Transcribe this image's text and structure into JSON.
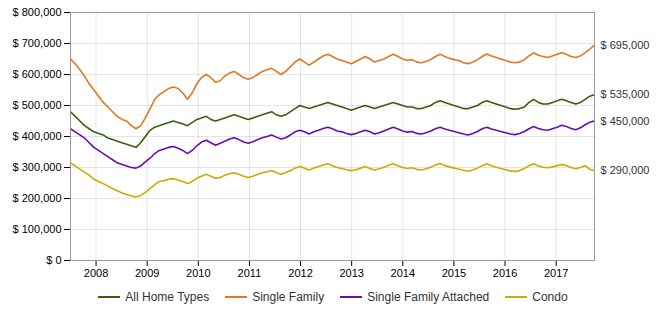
{
  "chart_data": {
    "type": "line",
    "x": [
      2007.5,
      2007.591518,
      2007.683036,
      2007.774554,
      2007.866071,
      2007.957589,
      2008.049107,
      2008.140625,
      2008.232143,
      2008.323661,
      2008.415179,
      2008.506696,
      2008.598214,
      2008.689732,
      2008.78125,
      2008.872768,
      2008.964286,
      2009.055804,
      2009.147321,
      2009.238839,
      2009.330357,
      2009.421875,
      2009.513393,
      2009.604911,
      2009.696429,
      2009.787946,
      2009.879464,
      2009.970982,
      2010.0625,
      2010.154018,
      2010.245536,
      2010.337054,
      2010.428571,
      2010.520089,
      2010.611607,
      2010.703125,
      2010.794643,
      2010.886161,
      2010.977679,
      2011.069196,
      2011.160714,
      2011.252232,
      2011.34375,
      2011.435268,
      2011.526786,
      2011.618304,
      2011.709821,
      2011.801339,
      2011.892857,
      2011.984375,
      2012.075893,
      2012.167411,
      2012.258929,
      2012.350446,
      2012.441964,
      2012.533482,
      2012.625,
      2012.716518,
      2012.808036,
      2012.899554,
      2012.991071,
      2013.082589,
      2013.174107,
      2013.265625,
      2013.357143,
      2013.448661,
      2013.540179,
      2013.631696,
      2013.723214,
      2013.814732,
      2013.90625,
      2013.997768,
      2014.089286,
      2014.180804,
      2014.272321,
      2014.363839,
      2014.455357,
      2014.546875,
      2014.638393,
      2014.729911,
      2014.821429,
      2014.912946,
      2015.004464,
      2015.095982,
      2015.1875,
      2015.279018,
      2015.370536,
      2015.462054,
      2015.553571,
      2015.645089,
      2015.736607,
      2015.828125,
      2015.919643,
      2016.011161,
      2016.102679,
      2016.194196,
      2016.285714,
      2016.377232,
      2016.46875,
      2016.560268,
      2016.651786,
      2016.743304,
      2016.834821,
      2016.926339,
      2017.017857,
      2017.109375,
      2017.200893,
      2017.292411,
      2017.383929,
      2017.475446,
      2017.566964,
      2017.658482,
      2017.75
    ],
    "series": [
      {
        "name": "All Home Types",
        "color": "#3a5f0b",
        "values": [
          480000,
          465000,
          450000,
          435000,
          425000,
          415000,
          410000,
          405000,
          395000,
          390000,
          385000,
          380000,
          375000,
          370000,
          365000,
          380000,
          400000,
          420000,
          430000,
          435000,
          440000,
          445000,
          450000,
          445000,
          440000,
          435000,
          445000,
          455000,
          460000,
          465000,
          455000,
          450000,
          455000,
          460000,
          465000,
          470000,
          465000,
          460000,
          455000,
          460000,
          465000,
          470000,
          475000,
          480000,
          470000,
          465000,
          470000,
          480000,
          490000,
          500000,
          495000,
          490000,
          495000,
          500000,
          505000,
          510000,
          505000,
          500000,
          495000,
          490000,
          485000,
          490000,
          495000,
          500000,
          495000,
          490000,
          495000,
          500000,
          505000,
          510000,
          505000,
          500000,
          495000,
          495000,
          490000,
          490000,
          495000,
          500000,
          510000,
          515000,
          510000,
          505000,
          500000,
          495000,
          490000,
          490000,
          495000,
          500000,
          510000,
          515000,
          510000,
          505000,
          500000,
          495000,
          490000,
          488000,
          490000,
          495000,
          510000,
          520000,
          510000,
          505000,
          505000,
          510000,
          515000,
          520000,
          515000,
          510000,
          505000,
          510000,
          520000,
          530000,
          535000
        ]
      },
      {
        "name": "Single Family",
        "color": "#e07820",
        "values": [
          650000,
          635000,
          615000,
          595000,
          570000,
          550000,
          530000,
          510000,
          495000,
          480000,
          465000,
          455000,
          450000,
          435000,
          425000,
          435000,
          460000,
          490000,
          520000,
          535000,
          545000,
          555000,
          560000,
          555000,
          540000,
          520000,
          540000,
          570000,
          590000,
          600000,
          590000,
          575000,
          580000,
          595000,
          605000,
          610000,
          600000,
          590000,
          585000,
          590000,
          600000,
          610000,
          615000,
          620000,
          610000,
          600000,
          610000,
          625000,
          640000,
          650000,
          640000,
          630000,
          640000,
          650000,
          660000,
          665000,
          658000,
          650000,
          645000,
          640000,
          635000,
          642000,
          650000,
          658000,
          650000,
          640000,
          645000,
          650000,
          658000,
          665000,
          658000,
          650000,
          645000,
          648000,
          640000,
          638000,
          642000,
          648000,
          658000,
          665000,
          658000,
          652000,
          648000,
          645000,
          638000,
          635000,
          640000,
          648000,
          658000,
          666000,
          660000,
          655000,
          650000,
          645000,
          640000,
          638000,
          640000,
          648000,
          660000,
          670000,
          662000,
          658000,
          655000,
          660000,
          665000,
          670000,
          665000,
          658000,
          655000,
          660000,
          670000,
          682000,
          695000
        ]
      },
      {
        "name": "Single Family Attached",
        "color": "#6a0dad",
        "values": [
          425000,
          415000,
          405000,
          395000,
          380000,
          365000,
          355000,
          345000,
          335000,
          325000,
          315000,
          310000,
          305000,
          300000,
          298000,
          305000,
          318000,
          330000,
          345000,
          355000,
          360000,
          365000,
          368000,
          362000,
          355000,
          345000,
          355000,
          370000,
          382000,
          388000,
          380000,
          372000,
          378000,
          385000,
          392000,
          396000,
          390000,
          382000,
          378000,
          383000,
          390000,
          396000,
          400000,
          405000,
          398000,
          392000,
          396000,
          405000,
          415000,
          420000,
          415000,
          408000,
          415000,
          420000,
          426000,
          430000,
          425000,
          418000,
          415000,
          410000,
          406000,
          410000,
          415000,
          420000,
          415000,
          408000,
          412000,
          418000,
          424000,
          430000,
          424000,
          418000,
          414000,
          416000,
          410000,
          408000,
          412000,
          418000,
          425000,
          430000,
          424000,
          420000,
          416000,
          412000,
          408000,
          405000,
          410000,
          416000,
          425000,
          430000,
          424000,
          420000,
          416000,
          412000,
          408000,
          406000,
          410000,
          416000,
          425000,
          432000,
          426000,
          422000,
          420000,
          425000,
          430000,
          436000,
          432000,
          426000,
          422000,
          428000,
          438000,
          446000,
          450000
        ]
      },
      {
        "name": "Condo",
        "color": "#ccaa00",
        "values": [
          315000,
          305000,
          295000,
          285000,
          275000,
          262000,
          255000,
          248000,
          240000,
          232000,
          225000,
          218000,
          213000,
          208000,
          205000,
          210000,
          220000,
          232000,
          245000,
          255000,
          258000,
          262000,
          264000,
          260000,
          255000,
          248000,
          255000,
          265000,
          272000,
          278000,
          272000,
          265000,
          268000,
          275000,
          280000,
          283000,
          278000,
          272000,
          268000,
          272000,
          278000,
          283000,
          286000,
          290000,
          283000,
          278000,
          283000,
          290000,
          298000,
          303000,
          298000,
          292000,
          298000,
          303000,
          308000,
          312000,
          306000,
          300000,
          297000,
          293000,
          290000,
          293000,
          298000,
          303000,
          297000,
          292000,
          296000,
          301000,
          307000,
          312000,
          306000,
          300000,
          297000,
          299000,
          294000,
          292000,
          296000,
          301000,
          308000,
          313000,
          306000,
          302000,
          298000,
          295000,
          291000,
          288000,
          292000,
          298000,
          306000,
          312000,
          306000,
          301000,
          297000,
          293000,
          289000,
          287000,
          290000,
          297000,
          306000,
          312000,
          305000,
          301000,
          299000,
          302000,
          306000,
          310000,
          306000,
          300000,
          296000,
          300000,
          306000,
          294000,
          290000
        ]
      }
    ],
    "xlim": [
      2007.5,
      2017.75
    ],
    "xticks": [
      2008,
      2009,
      2010,
      2011,
      2012,
      2013,
      2014,
      2015,
      2016,
      2017
    ],
    "ylim": [
      0,
      800000
    ],
    "yticks": [
      {
        "value": 0,
        "label": "$ 0"
      },
      {
        "value": 100000,
        "label": "$ 100,000"
      },
      {
        "value": 200000,
        "label": "$ 200,000"
      },
      {
        "value": 300000,
        "label": "$ 300,000"
      },
      {
        "value": 400000,
        "label": "$ 400,000"
      },
      {
        "value": 500000,
        "label": "$ 500,000"
      },
      {
        "value": 600000,
        "label": "$ 600,000"
      },
      {
        "value": 700000,
        "label": "$ 700,000"
      },
      {
        "value": 800000,
        "label": "$ 800,000"
      }
    ],
    "annotations": [
      {
        "text": "$ 695,000",
        "y": 695000
      },
      {
        "text": "$ 535,000",
        "y": 535000
      },
      {
        "text": "$ 450,000",
        "y": 450000
      },
      {
        "text": "$ 290,000",
        "y": 290000
      }
    ],
    "grid": true,
    "legend": "bottom"
  }
}
